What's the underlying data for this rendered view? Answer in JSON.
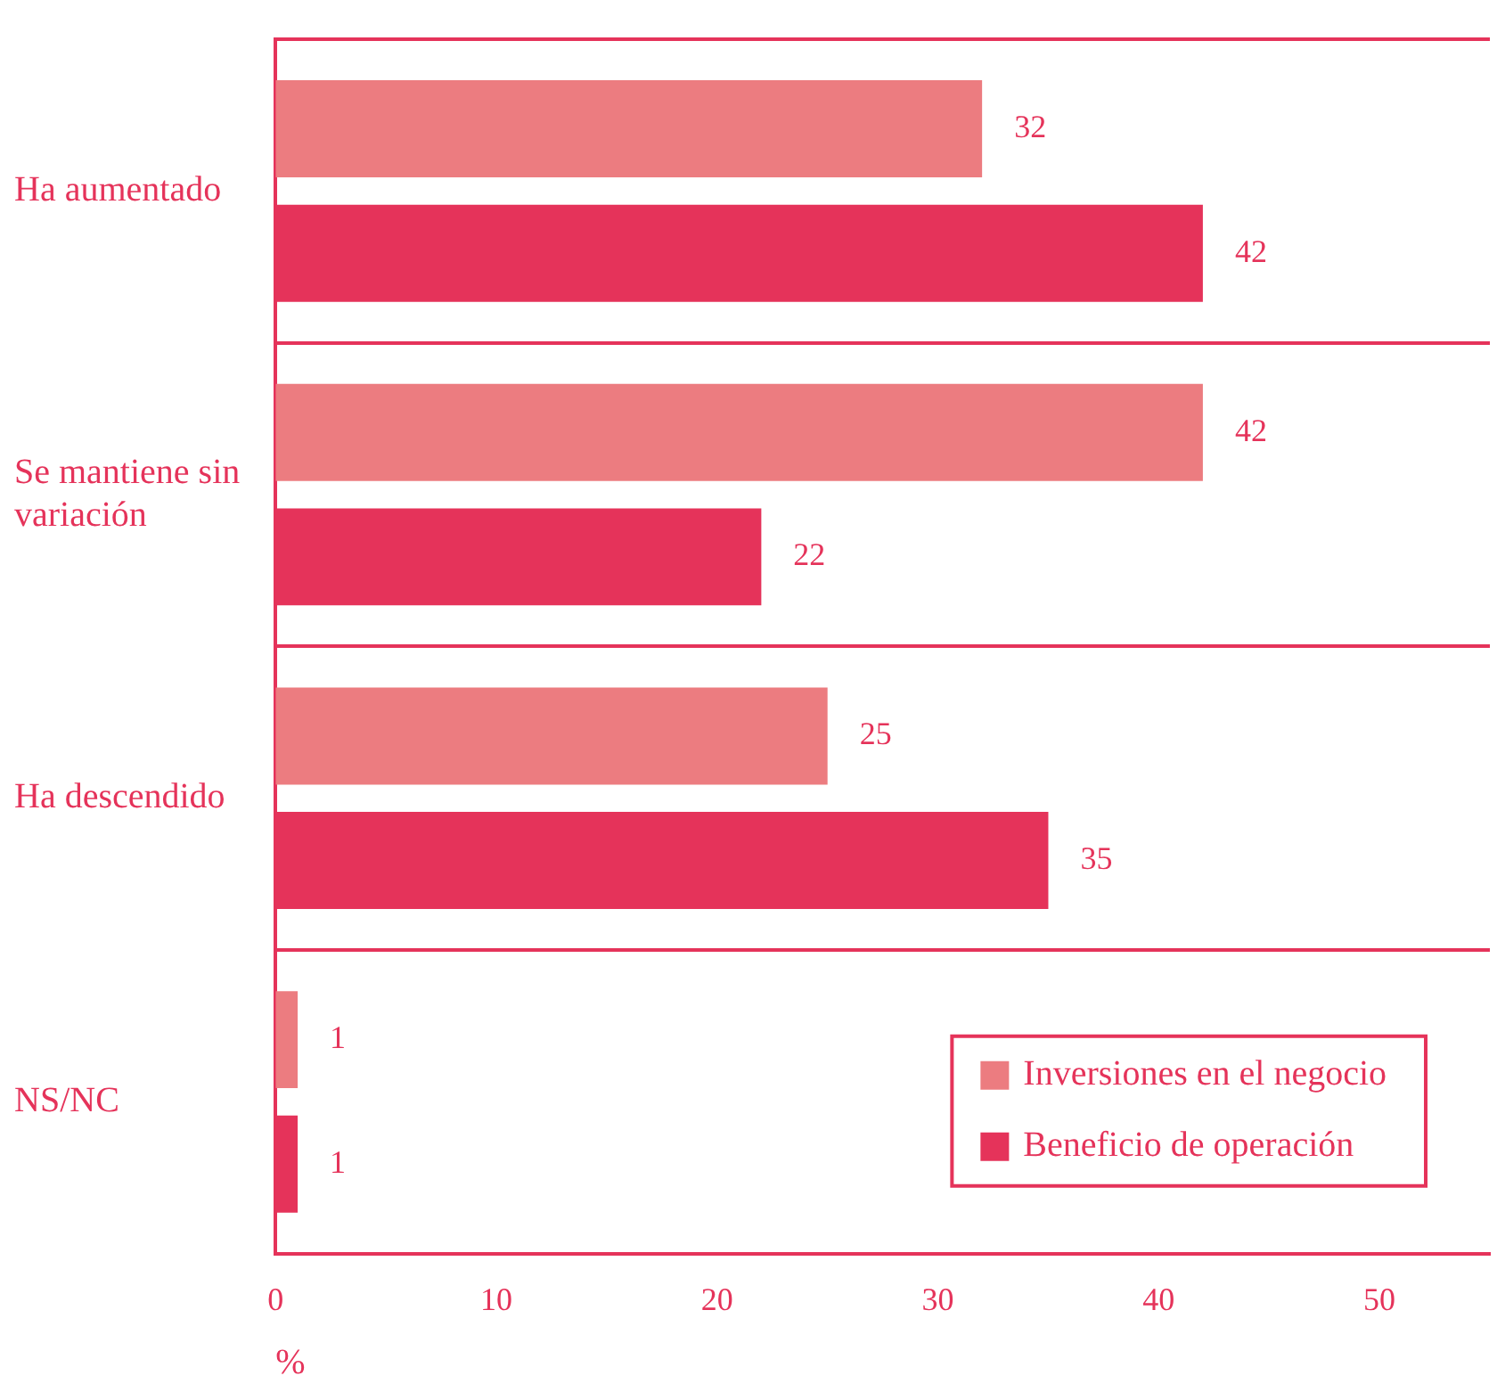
{
  "chart_data": {
    "type": "bar",
    "orientation": "horizontal",
    "xlabel": "%",
    "categories": [
      "Ha aumentado",
      "Se mantiene sin variación",
      "Ha descendido",
      "NS/NC"
    ],
    "series": [
      {
        "name": "Inversiones en el negocio",
        "color": "#ec7c80",
        "values": [
          32,
          42,
          25,
          1
        ]
      },
      {
        "name": "Beneficio de operación",
        "color": "#e5335a",
        "values": [
          42,
          22,
          35,
          1
        ]
      }
    ],
    "xlim": [
      0,
      55
    ],
    "xticks": [
      0,
      10,
      20,
      30,
      40,
      50
    ],
    "grid": "y",
    "legend": "bottom right",
    "data_labels": true
  }
}
